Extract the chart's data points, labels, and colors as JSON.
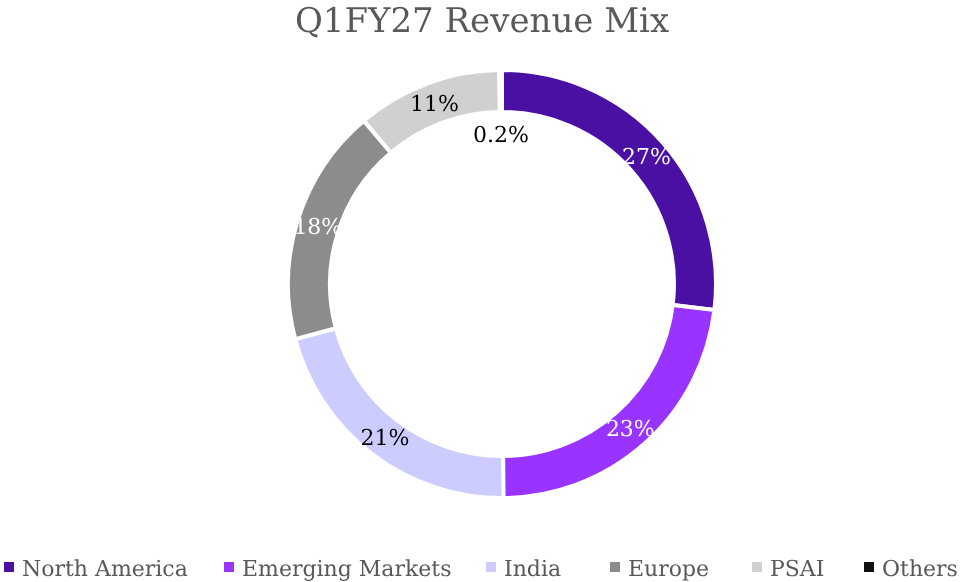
{
  "chart_data": {
    "type": "donut",
    "title": "Q1FY27 Revenue Mix",
    "categories": [
      "North America",
      "Emerging Markets",
      "India",
      "Europe",
      "PSAI",
      "Others"
    ],
    "values": [
      27,
      23,
      21,
      18,
      11,
      0.2
    ],
    "colors": [
      "#4a0fa3",
      "#9933ff",
      "#ccccff",
      "#8c8c8c",
      "#d0d0d0",
      "#111111"
    ],
    "value_labels": [
      "27%",
      "23%",
      "21%",
      "18%",
      "11%",
      "0.2%"
    ],
    "legend": "bottom"
  }
}
